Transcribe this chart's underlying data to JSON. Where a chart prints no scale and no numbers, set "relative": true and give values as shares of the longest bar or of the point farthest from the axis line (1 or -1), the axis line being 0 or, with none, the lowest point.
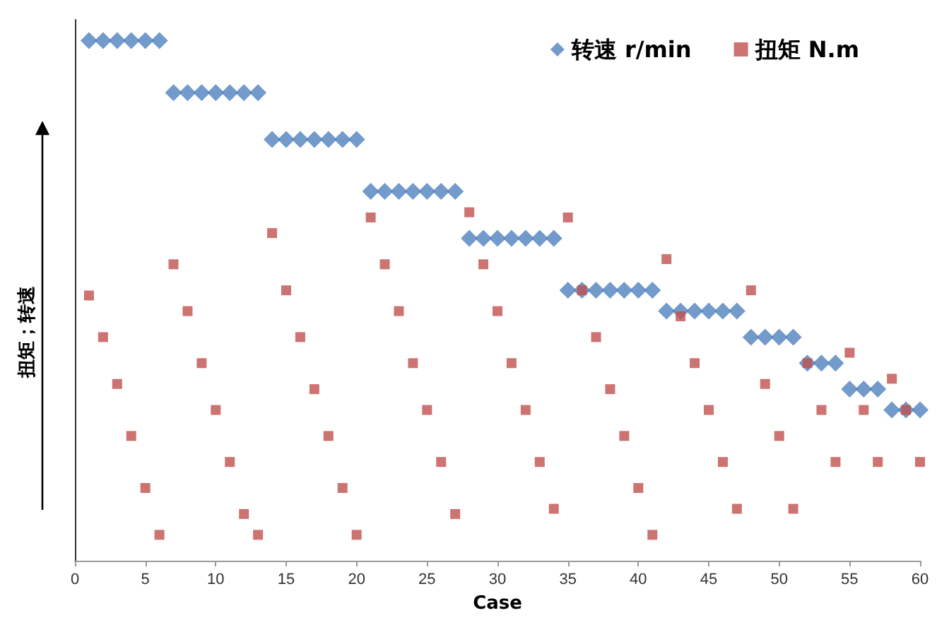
{
  "chart_data": {
    "type": "scatter",
    "xlabel": "Case",
    "ylabel": "扭矩；转速",
    "relative": true,
    "grid": false,
    "legend": "top right",
    "x": [
      1,
      2,
      3,
      4,
      5,
      6,
      7,
      8,
      9,
      10,
      11,
      12,
      13,
      14,
      15,
      16,
      17,
      18,
      19,
      20,
      21,
      22,
      23,
      24,
      25,
      26,
      27,
      28,
      29,
      30,
      31,
      32,
      33,
      34,
      35,
      36,
      37,
      38,
      39,
      40,
      41,
      42,
      43,
      44,
      45,
      46,
      47,
      48,
      49,
      50,
      51,
      52,
      53,
      54,
      55,
      56,
      57,
      58,
      59,
      60
    ],
    "xlim": [
      0,
      60
    ],
    "xticks": [
      0,
      5,
      10,
      15,
      20,
      25,
      30,
      35,
      40,
      45,
      50,
      55,
      60
    ],
    "series": [
      {
        "name": "转速 r/min",
        "color": "#4f81bd",
        "marker": "diamond",
        "values": [
          1,
          1,
          1,
          1,
          1,
          1,
          0.9,
          0.9,
          0.9,
          0.9,
          0.9,
          0.9,
          0.9,
          0.81,
          0.81,
          0.81,
          0.81,
          0.81,
          0.81,
          0.81,
          0.71,
          0.71,
          0.71,
          0.71,
          0.71,
          0.71,
          0.71,
          0.62,
          0.62,
          0.62,
          0.62,
          0.62,
          0.62,
          0.62,
          0.52,
          0.52,
          0.52,
          0.52,
          0.52,
          0.52,
          0.52,
          0.48,
          0.48,
          0.48,
          0.48,
          0.48,
          0.48,
          0.43,
          0.43,
          0.43,
          0.43,
          0.38,
          0.38,
          0.38,
          0.33,
          0.33,
          0.33,
          0.29,
          0.29,
          0.29
        ]
      },
      {
        "name": "扭矩 N.m",
        "color": "#c0504d",
        "marker": "square",
        "values": [
          0.51,
          0.43,
          0.34,
          0.24,
          0.14,
          0.05,
          0.57,
          0.48,
          0.38,
          0.29,
          0.19,
          0.09,
          0.05,
          0.63,
          0.52,
          0.43,
          0.33,
          0.24,
          0.14,
          0.05,
          0.66,
          0.57,
          0.48,
          0.38,
          0.29,
          0.19,
          0.09,
          0.67,
          0.57,
          0.48,
          0.38,
          0.29,
          0.19,
          0.1,
          0.66,
          0.52,
          0.43,
          0.33,
          0.24,
          0.14,
          0.05,
          0.58,
          0.47,
          0.38,
          0.29,
          0.19,
          0.1,
          0.52,
          0.34,
          0.24,
          0.1,
          0.38,
          0.29,
          0.19,
          0.4,
          0.29,
          0.19,
          0.35,
          0.29,
          0.19
        ]
      }
    ]
  }
}
